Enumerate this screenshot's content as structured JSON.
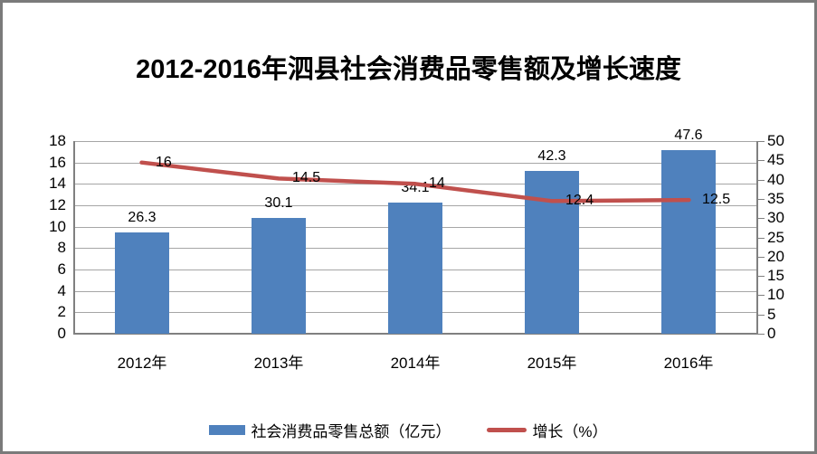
{
  "title": "2012-2016年泗县社会消费品零售额及增长速度",
  "colors": {
    "bar": "#4f81bd",
    "line": "#c0504d",
    "gridline": "#a6a6a6",
    "axis": "#808080",
    "frame_border": "#7a7a7a",
    "text": "#000000"
  },
  "chart_data": {
    "type": "bar",
    "subtype": "combo-bar-line",
    "title": "2012-2016年泗县社会消费品零售额及增长速度",
    "categories": [
      "2012年",
      "2013年",
      "2014年",
      "2015年",
      "2016年"
    ],
    "series": [
      {
        "name": "社会消费品零售总额（亿元）",
        "type": "bar",
        "axis": "right",
        "color": "#4f81bd",
        "values": [
          26.3,
          30.1,
          34.1,
          42.3,
          47.6
        ],
        "labels": [
          "26.3",
          "30.1",
          "34.1",
          "42.3",
          "47.6"
        ]
      },
      {
        "name": "增长（%）",
        "type": "line",
        "axis": "left",
        "color": "#c0504d",
        "values": [
          16,
          14.5,
          14,
          12.4,
          12.5
        ],
        "labels": [
          "16",
          "14.5",
          "14",
          "12.4",
          "12.5"
        ]
      }
    ],
    "left_axis": {
      "min": 0,
      "max": 18,
      "step": 2,
      "ticks": [
        "0",
        "2",
        "4",
        "6",
        "8",
        "10",
        "12",
        "14",
        "16",
        "18"
      ]
    },
    "right_axis": {
      "min": 0,
      "max": 50,
      "step": 5,
      "ticks": [
        "0",
        "5",
        "10",
        "15",
        "20",
        "25",
        "30",
        "35",
        "40",
        "45",
        "50"
      ]
    },
    "grid": true,
    "legend_position": "bottom"
  },
  "legend": {
    "items": [
      {
        "label": "社会消费品零售总额（亿元）",
        "swatch": "bar",
        "color": "#4f81bd"
      },
      {
        "label": "增长（%）",
        "swatch": "line",
        "color": "#c0504d"
      }
    ]
  }
}
